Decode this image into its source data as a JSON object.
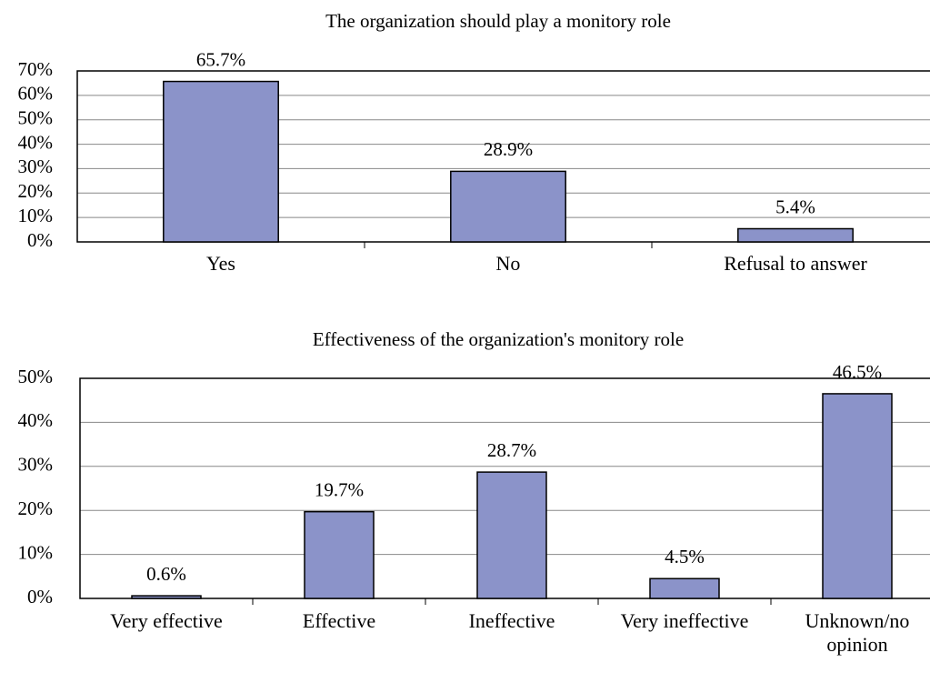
{
  "chart_data": [
    {
      "type": "bar",
      "title": "The organization should play a monitory role",
      "categories": [
        "Yes",
        "No",
        "Refusal to answer"
      ],
      "values": [
        65.7,
        28.9,
        5.4
      ],
      "value_labels": [
        "65.7%",
        "28.9%",
        "5.4%"
      ],
      "color": "#8b93c9",
      "ylim": [
        0,
        70
      ],
      "yticks": [
        {
          "value": 0,
          "label": "0%"
        },
        {
          "value": 10,
          "label": "10%"
        },
        {
          "value": 20,
          "label": "20%"
        },
        {
          "value": 30,
          "label": "30%"
        },
        {
          "value": 40,
          "label": "40%"
        },
        {
          "value": 50,
          "label": "50%"
        },
        {
          "value": 60,
          "label": "60%"
        },
        {
          "value": 70,
          "label": "70%"
        }
      ],
      "grid": true
    },
    {
      "type": "bar",
      "title": "Effectiveness of the organization's monitory role",
      "categories": [
        "Very effective",
        "Effective",
        "Ineffective",
        "Very ineffective",
        "Unknown/no opinion"
      ],
      "values": [
        0.6,
        19.7,
        28.7,
        4.5,
        46.5
      ],
      "value_labels": [
        "0.6%",
        "19.7%",
        "28.7%",
        "4.5%",
        "46.5%"
      ],
      "color": "#8b93c9",
      "ylim": [
        0,
        50
      ],
      "yticks": [
        {
          "value": 0,
          "label": "0%"
        },
        {
          "value": 10,
          "label": "10%"
        },
        {
          "value": 20,
          "label": "20%"
        },
        {
          "value": 30,
          "label": "30%"
        },
        {
          "value": 40,
          "label": "40%"
        },
        {
          "value": 50,
          "label": "50%"
        }
      ],
      "grid": true
    }
  ]
}
